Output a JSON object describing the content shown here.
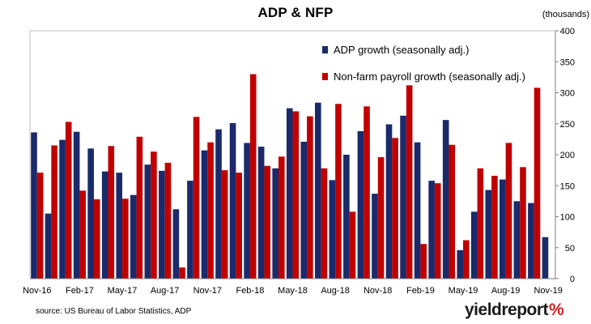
{
  "chart_data": {
    "type": "bar",
    "title": "ADP & NFP",
    "unit_label": "(thousands)",
    "ylim": [
      0,
      400
    ],
    "y_ticks": [
      0,
      50,
      100,
      150,
      200,
      250,
      300,
      350,
      400
    ],
    "y_axis_side": "right",
    "grid": false,
    "legend_position": "top-right",
    "x_tick_labels": [
      {
        "index": 0,
        "label": "Nov-16"
      },
      {
        "index": 3,
        "label": "Feb-17"
      },
      {
        "index": 6,
        "label": "May-17"
      },
      {
        "index": 9,
        "label": "Aug-17"
      },
      {
        "index": 12,
        "label": "Nov-17"
      },
      {
        "index": 15,
        "label": "Feb-18"
      },
      {
        "index": 18,
        "label": "May-18"
      },
      {
        "index": 21,
        "label": "Aug-18"
      },
      {
        "index": 24,
        "label": "Nov-18"
      },
      {
        "index": 27,
        "label": "Feb-19"
      },
      {
        "index": 30,
        "label": "May-19"
      },
      {
        "index": 33,
        "label": "Aug-19"
      },
      {
        "index": 36,
        "label": "Nov-19"
      }
    ],
    "series": [
      {
        "name": "ADP growth (seasonally adj.)",
        "color": "#1a2a6b",
        "values": [
          236,
          105,
          224,
          237,
          210,
          173,
          171,
          135,
          184,
          174,
          112,
          158,
          207,
          241,
          251,
          219,
          213,
          178,
          275,
          221,
          284,
          159,
          200,
          238,
          137,
          249,
          263,
          220,
          158,
          256,
          46,
          108,
          143,
          160,
          125,
          122,
          67
        ]
      },
      {
        "name": "Non-farm payroll growth (seasonally adj.)",
        "color": "#c00000",
        "values": [
          171,
          215,
          253,
          142,
          128,
          214,
          129,
          229,
          205,
          187,
          18,
          261,
          220,
          175,
          171,
          330,
          182,
          197,
          270,
          262,
          178,
          282,
          108,
          278,
          196,
          227,
          312,
          56,
          154,
          216,
          62,
          178,
          166,
          219,
          180,
          308,
          null
        ]
      }
    ]
  },
  "source": "source: US Bureau of Labor Statistics, ADP",
  "logo": {
    "text": "yieldreport",
    "symbol": "%"
  }
}
